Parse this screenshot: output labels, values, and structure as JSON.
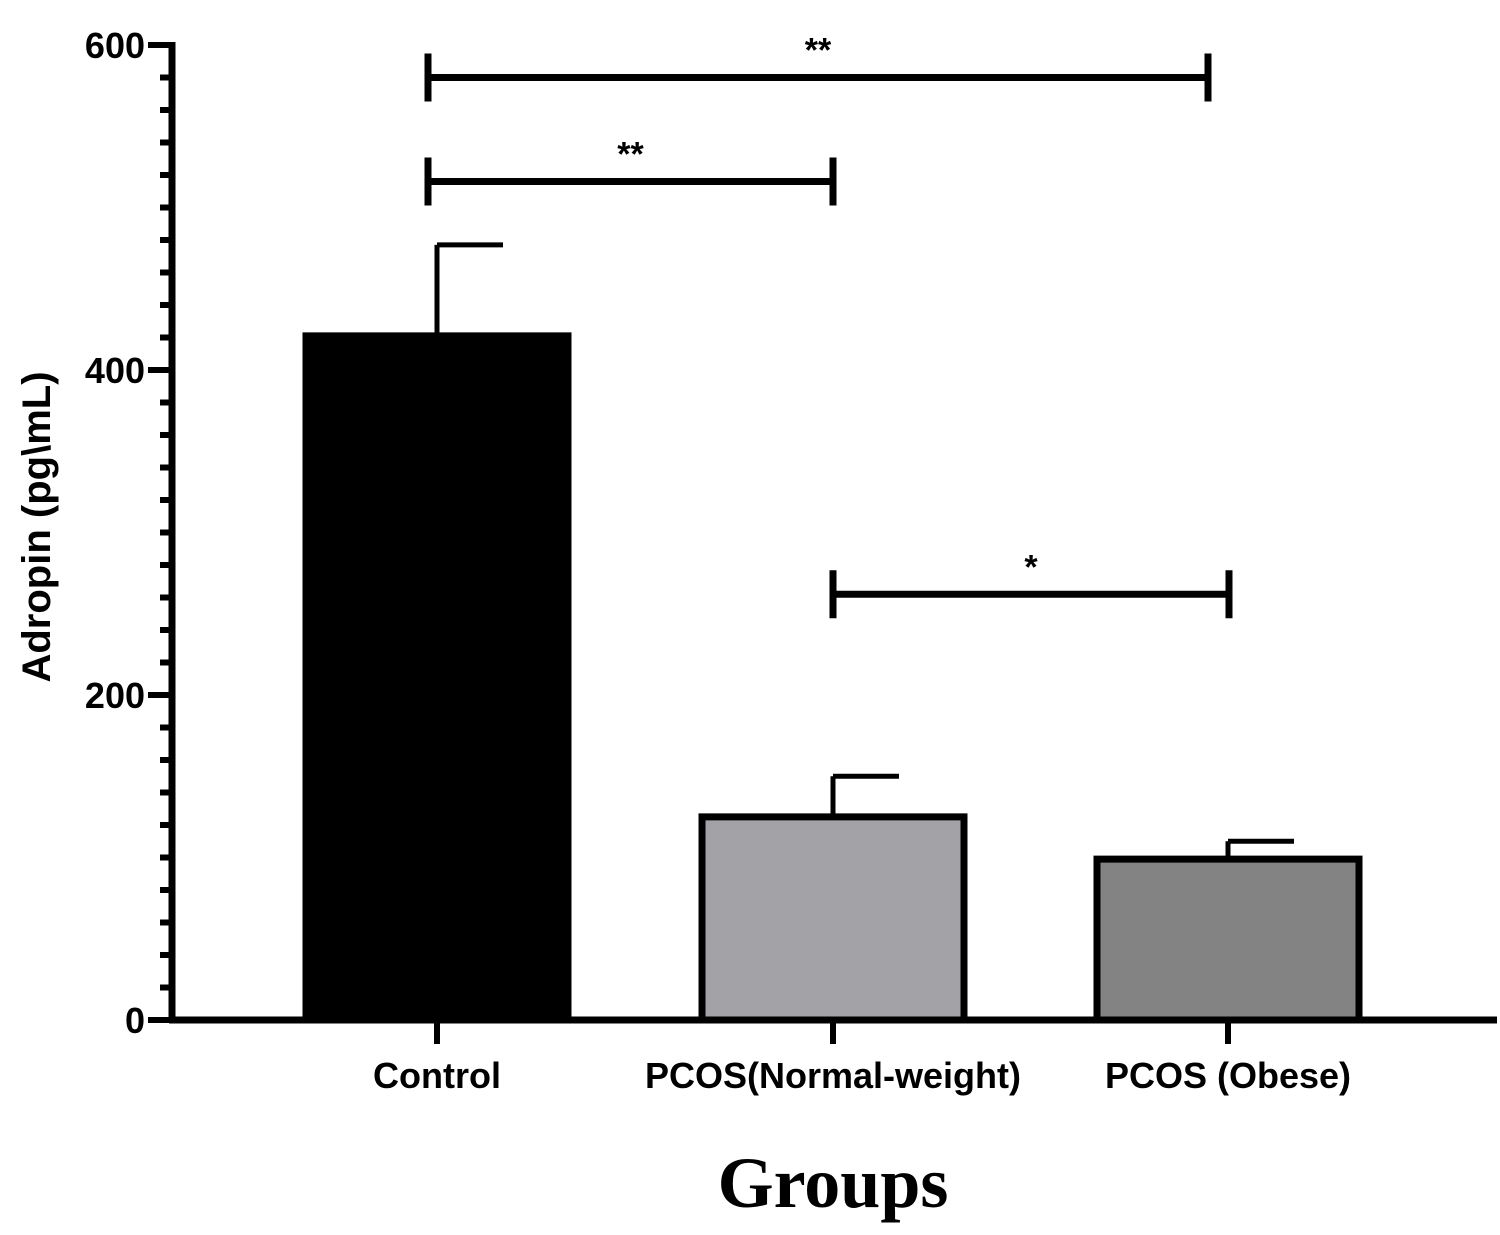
{
  "chart_data": {
    "type": "bar",
    "categories": [
      "Control",
      "PCOS(Normal-weight)",
      "PCOS (Obese)"
    ],
    "series": [
      {
        "values": [
          421,
          125,
          99
        ],
        "error": [
          56,
          25,
          11
        ],
        "colors": [
          "#000000",
          "#a3a3a7",
          "#838383"
        ]
      }
    ],
    "xlabel": "Groups",
    "ylabel": "Adropin (pg\\mL)",
    "ylim": [
      0,
      600
    ],
    "major_ticks": [
      0,
      200,
      400,
      600
    ],
    "minor_tick_step": 20,
    "grid": false,
    "significance": [
      {
        "from": 0,
        "to": 2,
        "y": 580,
        "label": "**"
      },
      {
        "from": 0,
        "to": 1,
        "y": 516,
        "label": "**"
      },
      {
        "from": 1,
        "to": 2,
        "y": 262,
        "label": "*"
      }
    ]
  }
}
